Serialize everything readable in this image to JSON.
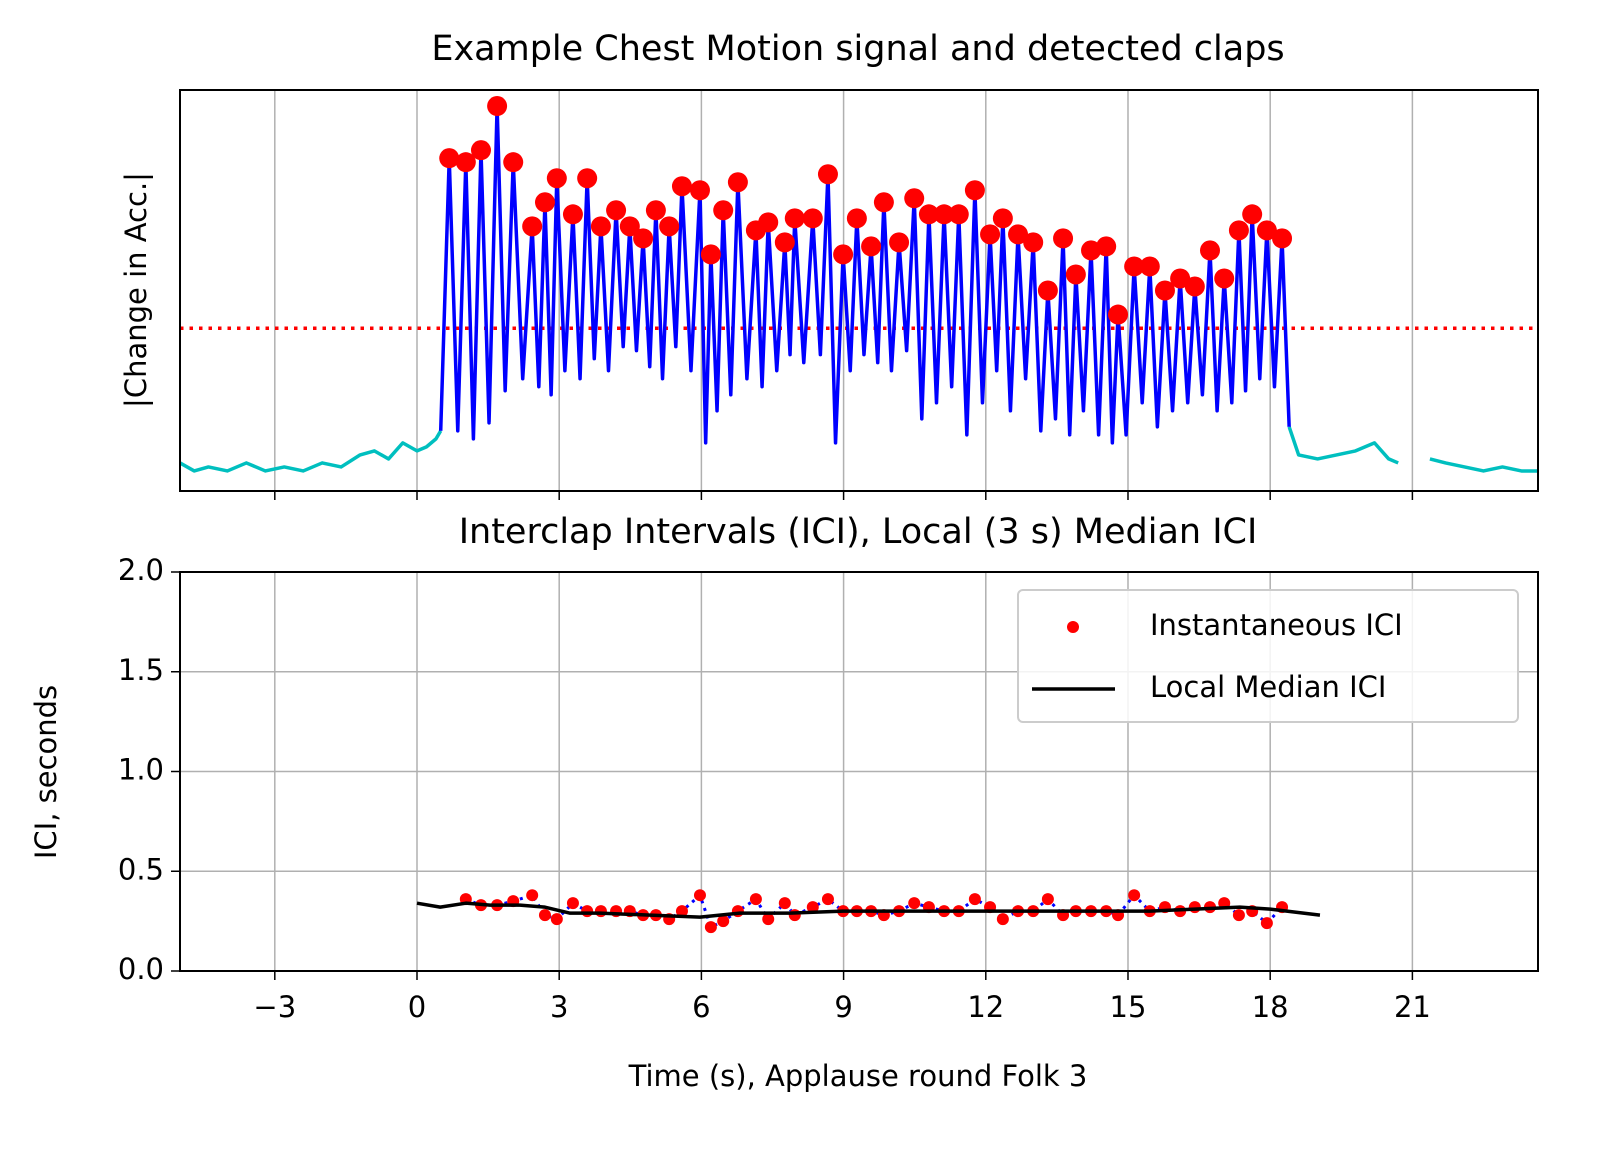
{
  "chart_data": [
    {
      "type": "line",
      "title": "Example Chest Motion signal and detected claps",
      "ylabel": "|Change in Acc.|",
      "xlim": [
        -5,
        23.65
      ],
      "ylim": [
        0,
        1
      ],
      "sharex": true,
      "grid": true,
      "threshold": 0.406,
      "threshold_color": "#ff0000",
      "series": [
        {
          "color": "#00bfbf",
          "x": [
            -5,
            -4.7,
            -4.4,
            -4,
            -3.6,
            -3.2,
            -2.8,
            -2.4,
            -2,
            -1.6,
            -1.2,
            -0.9,
            -0.6,
            -0.3,
            0,
            0.2,
            0.4,
            0.5,
            9,
            18.4,
            18.6,
            19,
            19.4,
            19.8,
            20.2,
            20.5,
            20.7,
            21.0,
            21.37,
            21.7,
            22.1,
            22.5,
            22.9,
            23.3,
            23.65
          ],
          "values": [
            0.07,
            0.05,
            0.06,
            0.05,
            0.07,
            0.05,
            0.06,
            0.05,
            0.07,
            0.06,
            0.09,
            0.1,
            0.08,
            0.12,
            0.1,
            0.11,
            0.13,
            0.15,
            null,
            0.16,
            0.09,
            0.08,
            0.09,
            0.1,
            0.12,
            0.08,
            0.07,
            null,
            0.08,
            0.07,
            0.06,
            0.05,
            0.06,
            0.05,
            0.05
          ]
        },
        {
          "color": "#0000ff",
          "x": [
            0.5,
            0.68,
            0.86,
            1.03,
            1.19,
            1.35,
            1.52,
            1.69,
            1.86,
            2.03,
            2.23,
            2.43,
            2.57,
            2.7,
            2.83,
            2.95,
            3.12,
            3.29,
            3.44,
            3.59,
            3.74,
            3.88,
            4.04,
            4.2,
            4.35,
            4.49,
            4.63,
            4.77,
            4.91,
            5.04,
            5.18,
            5.32,
            5.46,
            5.59,
            5.78,
            5.97,
            6.09,
            6.2,
            6.33,
            6.46,
            6.62,
            6.77,
            6.96,
            7.15,
            7.28,
            7.41,
            7.59,
            7.76,
            7.87,
            7.97,
            8.16,
            8.35,
            8.51,
            8.67,
            8.83,
            8.99,
            9.14,
            9.28,
            9.43,
            9.58,
            9.72,
            9.85,
            10.01,
            10.17,
            10.33,
            10.49,
            10.65,
            10.8,
            10.96,
            11.12,
            11.28,
            11.43,
            11.6,
            11.77,
            11.93,
            12.09,
            12.23,
            12.36,
            12.52,
            12.68,
            12.84,
            13.0,
            13.16,
            13.31,
            13.47,
            13.63,
            13.77,
            13.9,
            14.06,
            14.22,
            14.38,
            14.54,
            14.67,
            14.79,
            14.96,
            15.13,
            15.3,
            15.46,
            15.62,
            15.78,
            15.94,
            16.1,
            16.26,
            16.41,
            16.57,
            16.73,
            16.88,
            17.03,
            17.19,
            17.34,
            17.48,
            17.62,
            17.78,
            17.93,
            18.09,
            18.25,
            18.4
          ],
          "values": [
            0.15,
            0.83,
            0.15,
            0.82,
            0.13,
            0.85,
            0.17,
            0.96,
            0.25,
            0.82,
            0.28,
            0.66,
            0.26,
            0.72,
            0.24,
            0.78,
            0.3,
            0.69,
            0.28,
            0.78,
            0.33,
            0.66,
            0.3,
            0.7,
            0.36,
            0.66,
            0.35,
            0.63,
            0.31,
            0.7,
            0.28,
            0.66,
            0.36,
            0.76,
            0.3,
            0.75,
            0.12,
            0.59,
            0.2,
            0.7,
            0.24,
            0.77,
            0.28,
            0.65,
            0.26,
            0.67,
            0.3,
            0.62,
            0.34,
            0.68,
            0.32,
            0.68,
            0.34,
            0.79,
            0.12,
            0.59,
            0.3,
            0.68,
            0.34,
            0.61,
            0.32,
            0.72,
            0.3,
            0.62,
            0.35,
            0.73,
            0.18,
            0.69,
            0.22,
            0.69,
            0.26,
            0.69,
            0.14,
            0.75,
            0.22,
            0.64,
            0.3,
            0.68,
            0.2,
            0.64,
            0.28,
            0.62,
            0.15,
            0.5,
            0.18,
            0.63,
            0.14,
            0.54,
            0.2,
            0.6,
            0.14,
            0.61,
            0.12,
            0.44,
            0.14,
            0.56,
            0.22,
            0.56,
            0.16,
            0.5,
            0.2,
            0.53,
            0.22,
            0.51,
            0.24,
            0.6,
            0.2,
            0.53,
            0.22,
            0.65,
            0.25,
            0.69,
            0.28,
            0.65,
            0.26,
            0.63,
            0.16
          ]
        },
        {
          "color": "#ff0000",
          "marker": "dot",
          "x": [
            0.68,
            1.03,
            1.35,
            1.69,
            2.03,
            2.43,
            2.7,
            2.95,
            3.29,
            3.59,
            3.88,
            4.2,
            4.49,
            4.77,
            5.04,
            5.32,
            5.59,
            5.97,
            6.2,
            6.46,
            6.77,
            7.15,
            7.41,
            7.76,
            7.97,
            8.35,
            8.67,
            8.99,
            9.28,
            9.58,
            9.85,
            10.17,
            10.49,
            10.8,
            11.12,
            11.43,
            11.77,
            12.09,
            12.36,
            12.68,
            13.0,
            13.31,
            13.63,
            13.9,
            14.22,
            14.54,
            14.79,
            15.13,
            15.46,
            15.78,
            16.1,
            16.41,
            16.73,
            17.03,
            17.34,
            17.62,
            17.93,
            18.25
          ],
          "values": [
            0.83,
            0.82,
            0.85,
            0.96,
            0.82,
            0.66,
            0.72,
            0.78,
            0.69,
            0.78,
            0.66,
            0.7,
            0.66,
            0.63,
            0.7,
            0.66,
            0.76,
            0.75,
            0.59,
            0.7,
            0.77,
            0.65,
            0.67,
            0.62,
            0.68,
            0.68,
            0.79,
            0.59,
            0.68,
            0.61,
            0.72,
            0.62,
            0.73,
            0.69,
            0.69,
            0.69,
            0.75,
            0.64,
            0.68,
            0.64,
            0.62,
            0.5,
            0.63,
            0.54,
            0.6,
            0.61,
            0.44,
            0.56,
            0.56,
            0.5,
            0.53,
            0.51,
            0.6,
            0.53,
            0.65,
            0.69,
            0.65,
            0.63
          ]
        }
      ]
    },
    {
      "type": "line",
      "title": "Interclap Intervals (ICI), Local (3 s) Median ICI",
      "xlabel": "Time (s), Applause round Folk 3",
      "ylabel": "ICI, seconds",
      "xlim": [
        -5,
        23.65
      ],
      "ylim": [
        0,
        2
      ],
      "grid": true,
      "legend": "upper right",
      "xticks": [
        {
          "value": -3,
          "label": "−3"
        },
        0,
        3,
        6,
        9,
        12,
        15,
        18,
        21
      ],
      "yticks": [
        {
          "value": 0,
          "label": "0.0"
        },
        0.5,
        {
          "value": 1,
          "label": "1.0"
        },
        1.5,
        {
          "value": 2,
          "label": "2.0"
        }
      ],
      "series": [
        {
          "name": "Instantaneous ICI",
          "color": "#ff0000",
          "marker": "dot",
          "line_color": "#0000ff",
          "line_style": "dotted",
          "x": [
            1.03,
            1.35,
            1.69,
            2.03,
            2.43,
            2.7,
            2.95,
            3.29,
            3.59,
            3.88,
            4.2,
            4.49,
            4.77,
            5.04,
            5.32,
            5.59,
            5.97,
            6.2,
            6.46,
            6.77,
            7.15,
            7.41,
            7.76,
            7.97,
            8.35,
            8.67,
            8.99,
            9.28,
            9.58,
            9.85,
            10.17,
            10.49,
            10.8,
            11.12,
            11.43,
            11.77,
            12.09,
            12.36,
            12.68,
            13.0,
            13.31,
            13.63,
            13.9,
            14.22,
            14.54,
            14.79,
            15.13,
            15.46,
            15.78,
            16.1,
            16.41,
            16.73,
            17.03,
            17.34,
            17.62,
            17.93,
            18.25
          ],
          "values": [
            0.36,
            0.33,
            0.33,
            0.35,
            0.38,
            0.28,
            0.26,
            0.34,
            0.3,
            0.3,
            0.3,
            0.3,
            0.28,
            0.28,
            0.26,
            0.3,
            0.38,
            0.22,
            0.25,
            0.3,
            0.36,
            0.26,
            0.34,
            0.28,
            0.32,
            0.36,
            0.3,
            0.3,
            0.3,
            0.28,
            0.3,
            0.34,
            0.32,
            0.3,
            0.3,
            0.36,
            0.32,
            0.26,
            0.3,
            0.3,
            0.36,
            0.28,
            0.3,
            0.3,
            0.3,
            0.28,
            0.38,
            0.3,
            0.32,
            0.3,
            0.32,
            0.32,
            0.34,
            0.28,
            0.3,
            0.24,
            0.32
          ]
        },
        {
          "name": "Local Median ICI",
          "color": "#000000",
          "x": [
            0,
            0.49,
            1.03,
            1.54,
            2.17,
            2.7,
            3.23,
            3.86,
            4.92,
            5.97,
            6.81,
            7.87,
            8.99,
            12.3,
            14.41,
            15.46,
            17.36,
            18.0,
            19.05
          ],
          "values": [
            0.34,
            0.32,
            0.34,
            0.33,
            0.33,
            0.32,
            0.29,
            0.29,
            0.28,
            0.27,
            0.29,
            0.29,
            0.3,
            0.3,
            0.3,
            0.3,
            0.32,
            0.31,
            0.28
          ]
        }
      ]
    }
  ]
}
